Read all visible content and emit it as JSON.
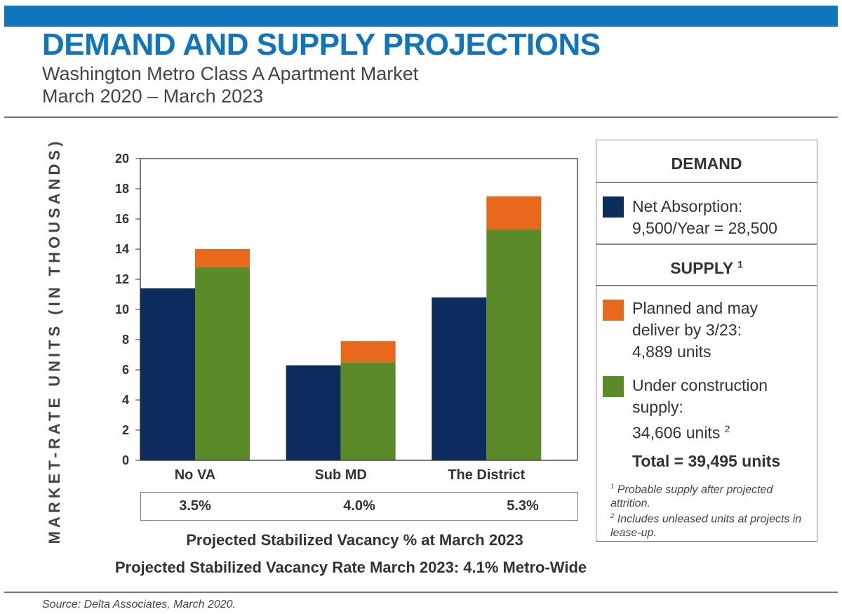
{
  "header": {
    "title": "DEMAND AND SUPPLY PROJECTIONS",
    "subtitle_line1": "Washington Metro Class A Apartment Market",
    "subtitle_line2": "March 2020 – March 2023"
  },
  "colors": {
    "brand_blue": "#0f75bc",
    "net_absorption": "#0d2c5e",
    "under_construction": "#5b8a29",
    "planned": "#e8691c"
  },
  "chart_data": {
    "type": "bar",
    "ylabel": "MARKET-RATE UNITS (IN THOUSANDS)",
    "ylim": [
      0,
      20
    ],
    "yticks": [
      "0",
      "2",
      "4",
      "6",
      "8",
      "10",
      "12",
      "14",
      "16",
      "18",
      "20"
    ],
    "categories": [
      "No VA",
      "Sub MD",
      "The District"
    ],
    "demand": {
      "name": "Net Absorption",
      "values": [
        11.4,
        6.3,
        10.8
      ]
    },
    "supply_stacked": [
      {
        "name": "Under construction supply",
        "values": [
          12.8,
          6.5,
          15.3
        ]
      },
      {
        "name": "Planned and may deliver by 3/23",
        "values": [
          1.2,
          1.4,
          2.2
        ]
      }
    ],
    "vacancy_rates": [
      "3.5%",
      "4.0%",
      "5.3%"
    ],
    "vacancy_caption": "Projected Stabilized Vacancy % at March 2023",
    "metro_caption": "Projected Stabilized Vacancy Rate March 2023: 4.1% Metro-Wide"
  },
  "legend": {
    "demand_header": "DEMAND",
    "demand_line1": "Net Absorption:",
    "demand_line2": "9,500/Year = 28,500",
    "supply_header": "SUPPLY",
    "supply_header_sup": "1",
    "planned_line1": "Planned and may",
    "planned_line2": "deliver by 3/23:",
    "planned_line3": "4,889 units",
    "construction_line1": "Under construction",
    "construction_line2": "supply:",
    "construction_line3": "34,606 units",
    "construction_sup": "2",
    "total": "Total = 39,495 units",
    "note1_mark": "1",
    "note1_text": "Probable supply after projected attrition.",
    "note2_mark": "2",
    "note2_text": "Includes unleased units at projects in lease-up."
  },
  "footer": {
    "source": "Source: Delta Associates, March 2020."
  }
}
